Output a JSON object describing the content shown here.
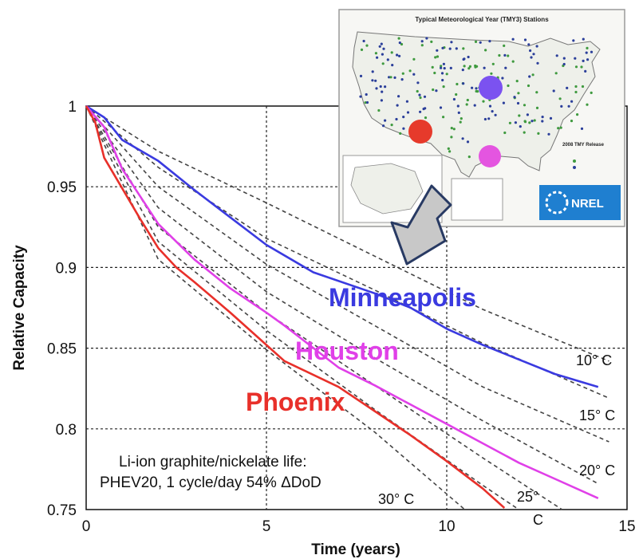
{
  "chart_data": {
    "type": "line",
    "title": "",
    "xlabel": "Time (years)",
    "ylabel": "Relative Capacity",
    "xlim": [
      0,
      15
    ],
    "ylim": [
      0.75,
      1
    ],
    "xticks": [
      "0",
      "5",
      "10",
      "15"
    ],
    "yticks": [
      "1",
      "0.95",
      "0.9",
      "0.85",
      "0.8",
      "0.75"
    ],
    "grid": "dashed",
    "series": [
      {
        "name": "Minneapolis",
        "color": "#3a3ae0",
        "x": [
          0,
          0.5,
          1,
          2,
          3,
          4,
          5,
          6.3,
          8,
          9,
          10,
          11,
          12,
          13,
          14.2
        ],
        "y": [
          1,
          0.993,
          0.979,
          0.966,
          0.948,
          0.931,
          0.914,
          0.897,
          0.884,
          0.875,
          0.862,
          0.852,
          0.843,
          0.834,
          0.826
        ]
      },
      {
        "name": "Houston",
        "color": "#e040e8",
        "x": [
          0,
          0.5,
          1,
          1.5,
          2,
          3,
          4,
          5,
          5.5,
          7,
          8,
          9,
          10,
          11,
          12,
          13,
          14.2
        ],
        "y": [
          1,
          0.987,
          0.961,
          0.944,
          0.927,
          0.905,
          0.887,
          0.872,
          0.864,
          0.838,
          0.827,
          0.815,
          0.803,
          0.791,
          0.779,
          0.769,
          0.757
        ]
      },
      {
        "name": "Phoenix",
        "color": "#e8302a",
        "x": [
          0,
          0.25,
          0.5,
          1,
          1.5,
          2,
          2.5,
          3,
          4,
          5,
          5.5,
          7,
          8,
          9,
          10,
          11,
          11.6
        ],
        "y": [
          1,
          0.99,
          0.968,
          0.949,
          0.93,
          0.912,
          0.9,
          0.891,
          0.872,
          0.852,
          0.842,
          0.826,
          0.811,
          0.796,
          0.78,
          0.763,
          0.751
        ]
      }
    ],
    "fit_curves": [
      {
        "label": "10° C",
        "x": [
          0,
          2,
          5,
          8,
          11,
          14.5
        ],
        "y": [
          1,
          0.972,
          0.94,
          0.907,
          0.874,
          0.842
        ]
      },
      {
        "label": "",
        "x": [
          0,
          2,
          5,
          8,
          11,
          14.5
        ],
        "y": [
          1,
          0.962,
          0.918,
          0.886,
          0.853,
          0.819
        ]
      },
      {
        "label": "15° C",
        "x": [
          0,
          2,
          5,
          8,
          11,
          14.5
        ],
        "y": [
          1,
          0.95,
          0.902,
          0.864,
          0.826,
          0.792
        ]
      },
      {
        "label": "",
        "x": [
          0,
          2,
          5,
          8,
          11,
          14.2
        ],
        "y": [
          1,
          0.937,
          0.885,
          0.844,
          0.805,
          0.766
        ]
      },
      {
        "label": "20° C",
        "x": [
          0,
          2,
          5,
          8,
          11,
          13.2
        ],
        "y": [
          1,
          0.925,
          0.872,
          0.827,
          0.782,
          0.75
        ]
      },
      {
        "label": "25° C",
        "x": [
          0,
          2,
          5,
          8,
          11,
          12
        ],
        "y": [
          1,
          0.916,
          0.861,
          0.812,
          0.765,
          0.75
        ]
      },
      {
        "label": "30° C",
        "x": [
          0,
          2,
          5,
          8,
          10.5
        ],
        "y": [
          1,
          0.905,
          0.849,
          0.798,
          0.75
        ]
      }
    ],
    "annotations": {
      "cities": [
        {
          "text": "Minneapolis",
          "color": "#3a3ae0"
        },
        {
          "text": "Houston",
          "color": "#e040e8"
        },
        {
          "text": "Phoenix",
          "color": "#e8302a"
        }
      ],
      "temps": {
        "t10": "10° C",
        "t15": "15° C",
        "t20": "20° C",
        "t25": "25°",
        "t25c": "C",
        "t30": "30° C"
      },
      "note_line1": "Li-ion graphite/nickelate life:",
      "note_line2": "PHEV20, 1 cycle/day 54% ΔDoD"
    }
  },
  "inset": {
    "title": "Typical Meteorological Year (TMY3) Stations",
    "legend_title": "2008 TMY Release",
    "logo_text": "NREL",
    "marker_colors": {
      "minneapolis": "#7b52f0",
      "houston": "#e455e0",
      "phoenix": "#e63a2b"
    }
  }
}
